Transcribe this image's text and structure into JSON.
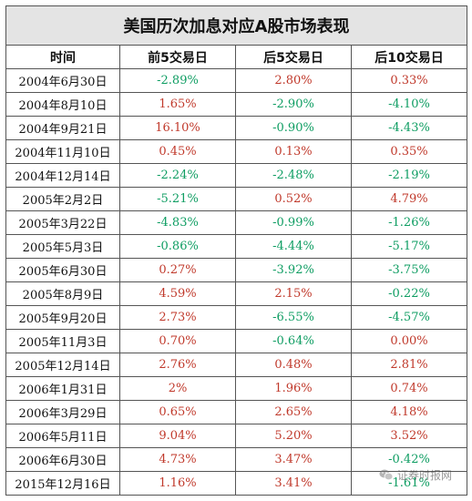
{
  "table": {
    "title": "美国历次加息对应A股市场表现",
    "headers": [
      "时间",
      "前5交易日",
      "后5交易日",
      "后10交易日"
    ],
    "rows": [
      [
        "2004年6月30日",
        "-2.89%",
        "2.80%",
        "0.33%"
      ],
      [
        "2004年8月10日",
        "1.65%",
        "-2.90%",
        "-4.10%"
      ],
      [
        "2004年9月21日",
        "16.10%",
        "-0.90%",
        "-4.43%"
      ],
      [
        "2004年11月10日",
        "0.45%",
        "0.13%",
        "0.35%"
      ],
      [
        "2004年12月14日",
        "-2.24%",
        "-2.48%",
        "-2.19%"
      ],
      [
        "2005年2月2日",
        "-5.21%",
        "0.52%",
        "4.79%"
      ],
      [
        "2005年3月22日",
        "-4.83%",
        "-0.99%",
        "-1.26%"
      ],
      [
        "2005年5月3日",
        "-0.86%",
        "-4.44%",
        "-5.17%"
      ],
      [
        "2005年6月30日",
        "0.27%",
        "-3.92%",
        "-3.75%"
      ],
      [
        "2005年8月9日",
        "4.59%",
        "2.15%",
        "-0.22%"
      ],
      [
        "2005年9月20日",
        "2.73%",
        "-6.55%",
        "-4.57%"
      ],
      [
        "2005年11月3日",
        "0.70%",
        "-0.64%",
        "0.00%"
      ],
      [
        "2005年12月14日",
        "2.76%",
        "0.48%",
        "2.81%"
      ],
      [
        "2006年1月31日",
        "2%",
        "1.96%",
        "0.74%"
      ],
      [
        "2006年3月29日",
        "0.65%",
        "2.65%",
        "4.18%"
      ],
      [
        "2006年5月11日",
        "9.04%",
        "5.20%",
        "3.52%"
      ],
      [
        "2006年6月30日",
        "4.73%",
        "3.47%",
        "-0.42%"
      ],
      [
        "2015年12月16日",
        "1.16%",
        "3.41%",
        "-1.61%"
      ]
    ]
  },
  "watermark": {
    "text": "证券时报网",
    "icon": "wechat-icon"
  },
  "colors": {
    "positive": "#c0392b",
    "negative": "#0e9d62",
    "title_bg": "#e4e4e4",
    "border": "#555555"
  }
}
